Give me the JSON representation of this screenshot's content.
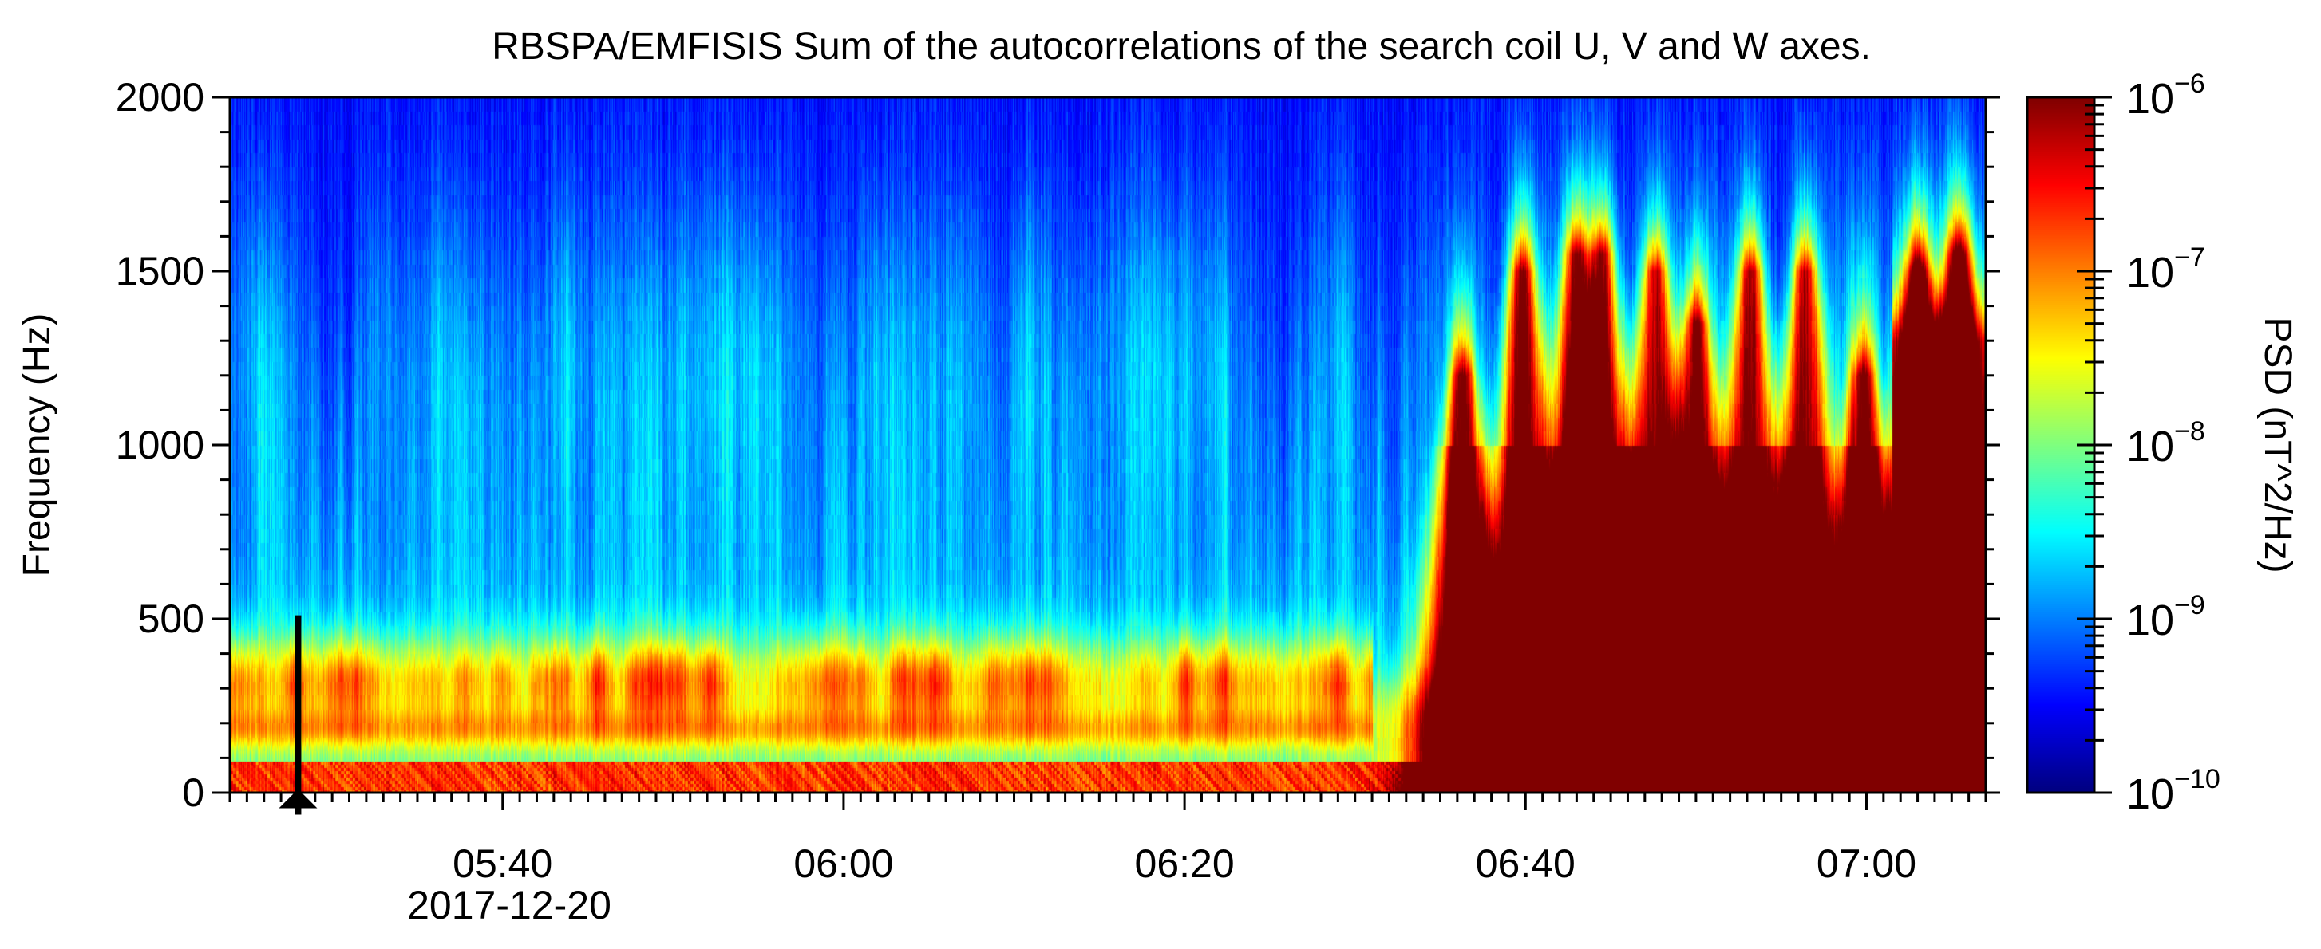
{
  "chart_data": {
    "type": "heatmap",
    "title": "RBSPA/EMFISIS  Sum of the autocorrelations of the search coil U, V and W axes.",
    "xlabel": "",
    "ylabel": "Frequency (Hz)",
    "x_date_label": "2017-12-20",
    "x_time_range_minutes": [
      324,
      427
    ],
    "x_ticks": [
      {
        "minute": 340,
        "label": "05:40"
      },
      {
        "minute": 360,
        "label": "06:00"
      },
      {
        "minute": 380,
        "label": "06:20"
      },
      {
        "minute": 400,
        "label": "06:40"
      },
      {
        "minute": 420,
        "label": "07:00"
      }
    ],
    "ylim": [
      0,
      2000
    ],
    "y_ticks": [
      0,
      500,
      1000,
      1500,
      2000
    ],
    "y_tick_labels": [
      "0",
      "500",
      "1000",
      "1500",
      "2000"
    ],
    "colorbar": {
      "label": "PSD (nT^2/Hz)",
      "scale": "log",
      "range": [
        1e-10,
        1e-06
      ],
      "ticks": [
        {
          "base": "10",
          "exp": "−6"
        },
        {
          "base": "10",
          "exp": "−7"
        },
        {
          "base": "10",
          "exp": "−8"
        },
        {
          "base": "10",
          "exp": "−9"
        },
        {
          "base": "10",
          "exp": "−10"
        }
      ],
      "colormap": "jet"
    },
    "features": {
      "background_log10_psd": -9.5,
      "chorus_band_hz": [
        230,
        420
      ],
      "chorus_band_log10_psd": -7.0,
      "low_band_hz": [
        0,
        90
      ],
      "low_band_log10_psd": -6.4,
      "burst_minutes": [
        396.3,
        399.8,
        403.0,
        404.5,
        407.6,
        410.0,
        413.2,
        416.4,
        419.8,
        423.0,
        425.4
      ],
      "burst_peak_freq_hz": [
        1200,
        1500,
        1550,
        1550,
        1500,
        1350,
        1500,
        1500,
        1200,
        1500,
        1550
      ],
      "arrow_minute": 328,
      "arrow_from_hz": 510,
      "arrow_to_hz": 15
    }
  }
}
